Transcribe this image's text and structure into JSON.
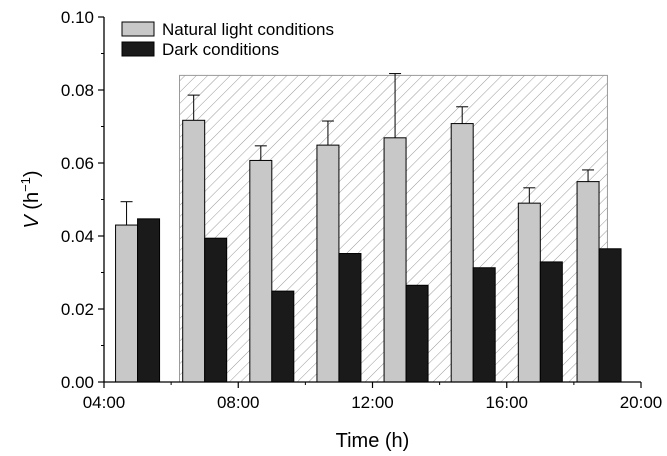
{
  "chart_data": {
    "type": "bar",
    "xlabel": "Time (h)",
    "ylabel_main": "V",
    "ylabel_unit_base": " (h",
    "ylabel_unit_exp": "−1",
    "ylabel_unit_close": ")",
    "xlim": [
      4,
      20
    ],
    "ylim": [
      0,
      0.1
    ],
    "x_ticks": [
      {
        "value": 4,
        "label": "04:00"
      },
      {
        "value": 8,
        "label": "08:00"
      },
      {
        "value": 12,
        "label": "12:00"
      },
      {
        "value": 16,
        "label": "16:00"
      },
      {
        "value": 20,
        "label": "20:00"
      }
    ],
    "y_ticks": [
      {
        "value": 0,
        "label": "0.00"
      },
      {
        "value": 0.02,
        "label": "0.02"
      },
      {
        "value": 0.04,
        "label": "0.04"
      },
      {
        "value": 0.06,
        "label": "0.06"
      },
      {
        "value": 0.08,
        "label": "0.08"
      },
      {
        "value": 0.1,
        "label": "0.10"
      }
    ],
    "shaded_region": {
      "x_start": 6.25,
      "x_end": 19.0,
      "y_top": 0.084,
      "pattern": "diagonal hatch"
    },
    "legend": {
      "position": "top-left"
    },
    "series": [
      {
        "name": "Natural light conditions",
        "color": "#c8c8c8",
        "x": [
          5.0,
          7.0,
          9.0,
          11.0,
          13.0,
          15.0,
          17.0,
          18.75
        ],
        "values": [
          0.043,
          0.0717,
          0.0607,
          0.0649,
          0.0669,
          0.0708,
          0.049,
          0.0549
        ],
        "error_upper": [
          0.0494,
          0.0786,
          0.0647,
          0.0715,
          0.0845,
          0.0754,
          0.0532,
          0.0581
        ]
      },
      {
        "name": "Dark conditions",
        "color": "#1a1a1a",
        "x": [
          5.0,
          7.0,
          9.0,
          11.0,
          13.0,
          15.0,
          17.0,
          18.75
        ],
        "values": [
          0.0447,
          0.0394,
          0.0249,
          0.0352,
          0.0265,
          0.0313,
          0.0329,
          0.0365
        ]
      }
    ]
  }
}
